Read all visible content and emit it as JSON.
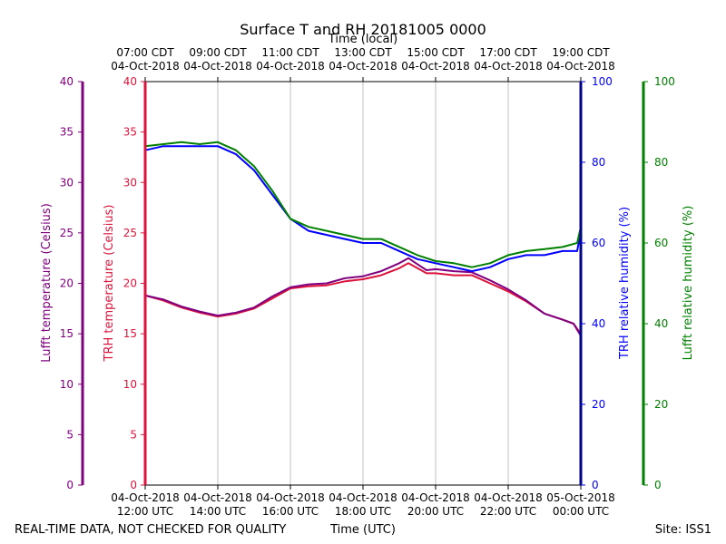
{
  "chart_data": {
    "type": "line",
    "title": "Surface T and RH 20181005 0000",
    "top_axis_label": "Time (local)",
    "xlabel": "Time (UTC)",
    "footer_left": "REAL-TIME DATA, NOT CHECKED FOR QUALITY",
    "footer_right": "Site: ISS1",
    "x_range_hours_utc": [
      12,
      24
    ],
    "bottom_ticks": [
      {
        "hour": 12,
        "line1": "04-Oct-2018",
        "line2": "12:00 UTC"
      },
      {
        "hour": 14,
        "line1": "04-Oct-2018",
        "line2": "14:00 UTC"
      },
      {
        "hour": 16,
        "line1": "04-Oct-2018",
        "line2": "16:00 UTC"
      },
      {
        "hour": 18,
        "line1": "04-Oct-2018",
        "line2": "18:00 UTC"
      },
      {
        "hour": 20,
        "line1": "04-Oct-2018",
        "line2": "20:00 UTC"
      },
      {
        "hour": 22,
        "line1": "04-Oct-2018",
        "line2": "22:00 UTC"
      },
      {
        "hour": 24,
        "line1": "05-Oct-2018",
        "line2": "00:00 UTC"
      }
    ],
    "top_ticks": [
      {
        "hour": 12,
        "line1": "07:00 CDT",
        "line2": "04-Oct-2018"
      },
      {
        "hour": 14,
        "line1": "09:00 CDT",
        "line2": "04-Oct-2018"
      },
      {
        "hour": 16,
        "line1": "11:00 CDT",
        "line2": "04-Oct-2018"
      },
      {
        "hour": 18,
        "line1": "13:00 CDT",
        "line2": "04-Oct-2018"
      },
      {
        "hour": 20,
        "line1": "15:00 CDT",
        "line2": "04-Oct-2018"
      },
      {
        "hour": 22,
        "line1": "17:00 CDT",
        "line2": "04-Oct-2018"
      },
      {
        "hour": 24,
        "line1": "19:00 CDT",
        "line2": "04-Oct-2018"
      }
    ],
    "temp_axis": {
      "ylim": [
        0,
        40
      ],
      "ticks": [
        0,
        5,
        10,
        15,
        20,
        25,
        30,
        35,
        40
      ]
    },
    "rh_axis": {
      "ylim": [
        0,
        100
      ],
      "ticks": [
        0,
        20,
        40,
        60,
        80,
        100
      ]
    },
    "axes": [
      {
        "id": "lufft_temp",
        "label": "Lufft temperature (Celsius)",
        "color": "#800080"
      },
      {
        "id": "trh_temp",
        "label": "TRH temperature (Celsius)",
        "color": "#dc143c"
      },
      {
        "id": "trh_rh",
        "label": "TRH relative humidity (%)",
        "color": "#0000ff"
      },
      {
        "id": "lufft_rh",
        "label": "Lufft relative humidity (%)",
        "color": "#008000"
      }
    ],
    "series": [
      {
        "name": "TRH temperature",
        "axis": "temp",
        "color": "#dc143c",
        "x": [
          12.0,
          12.5,
          13.0,
          13.5,
          14.0,
          14.5,
          15.0,
          15.5,
          16.0,
          16.5,
          17.0,
          17.5,
          18.0,
          18.5,
          19.0,
          19.25,
          19.5,
          19.75,
          20.0,
          20.5,
          21.0,
          21.5,
          22.0,
          22.5,
          23.0,
          23.5,
          23.8,
          24.0
        ],
        "y": [
          18.8,
          18.3,
          17.6,
          17.1,
          16.7,
          17.0,
          17.5,
          18.5,
          19.5,
          19.7,
          19.8,
          20.2,
          20.4,
          20.8,
          21.5,
          22.0,
          21.5,
          21.0,
          21.0,
          20.8,
          20.8,
          20.0,
          19.2,
          18.2,
          17.0,
          16.4,
          16.0,
          15.0
        ]
      },
      {
        "name": "Lufft temperature",
        "axis": "temp",
        "color": "#800080",
        "x": [
          12.0,
          12.5,
          13.0,
          13.5,
          14.0,
          14.5,
          15.0,
          15.5,
          16.0,
          16.5,
          17.0,
          17.5,
          18.0,
          18.5,
          19.0,
          19.25,
          19.5,
          19.75,
          20.0,
          20.5,
          21.0,
          21.5,
          22.0,
          22.5,
          23.0,
          23.5,
          23.8,
          24.0
        ],
        "y": [
          18.8,
          18.4,
          17.7,
          17.2,
          16.8,
          17.1,
          17.6,
          18.7,
          19.6,
          19.9,
          20.0,
          20.5,
          20.7,
          21.2,
          22.0,
          22.5,
          21.9,
          21.3,
          21.4,
          21.2,
          21.1,
          20.3,
          19.4,
          18.3,
          17.0,
          16.4,
          16.0,
          14.8
        ]
      },
      {
        "name": "TRH relative humidity",
        "axis": "rh",
        "color": "#0000ff",
        "x": [
          12.0,
          12.5,
          13.0,
          13.5,
          14.0,
          14.5,
          15.0,
          15.5,
          16.0,
          16.5,
          17.0,
          17.5,
          18.0,
          18.5,
          19.0,
          19.5,
          20.0,
          20.5,
          21.0,
          21.5,
          22.0,
          22.5,
          23.0,
          23.5,
          23.9,
          24.0
        ],
        "y": [
          83,
          84,
          84,
          84,
          84,
          82,
          78,
          72,
          66,
          63,
          62,
          61,
          60,
          60,
          58,
          56,
          55,
          54,
          53,
          54,
          56,
          57,
          57,
          58,
          58,
          63
        ]
      },
      {
        "name": "Lufft relative humidity",
        "axis": "rh",
        "color": "#008000",
        "x": [
          12.0,
          12.5,
          13.0,
          13.5,
          14.0,
          14.5,
          15.0,
          15.5,
          16.0,
          16.5,
          17.0,
          17.5,
          18.0,
          18.5,
          19.0,
          19.5,
          20.0,
          20.5,
          21.0,
          21.5,
          22.0,
          22.5,
          23.0,
          23.5,
          23.9,
          24.0
        ],
        "y": [
          84,
          84.5,
          85,
          84.5,
          85,
          83,
          79,
          73,
          66,
          64,
          63,
          62,
          61,
          61,
          59,
          57,
          55.5,
          55,
          54,
          55,
          57,
          58,
          58.5,
          59,
          60,
          64
        ]
      }
    ]
  }
}
